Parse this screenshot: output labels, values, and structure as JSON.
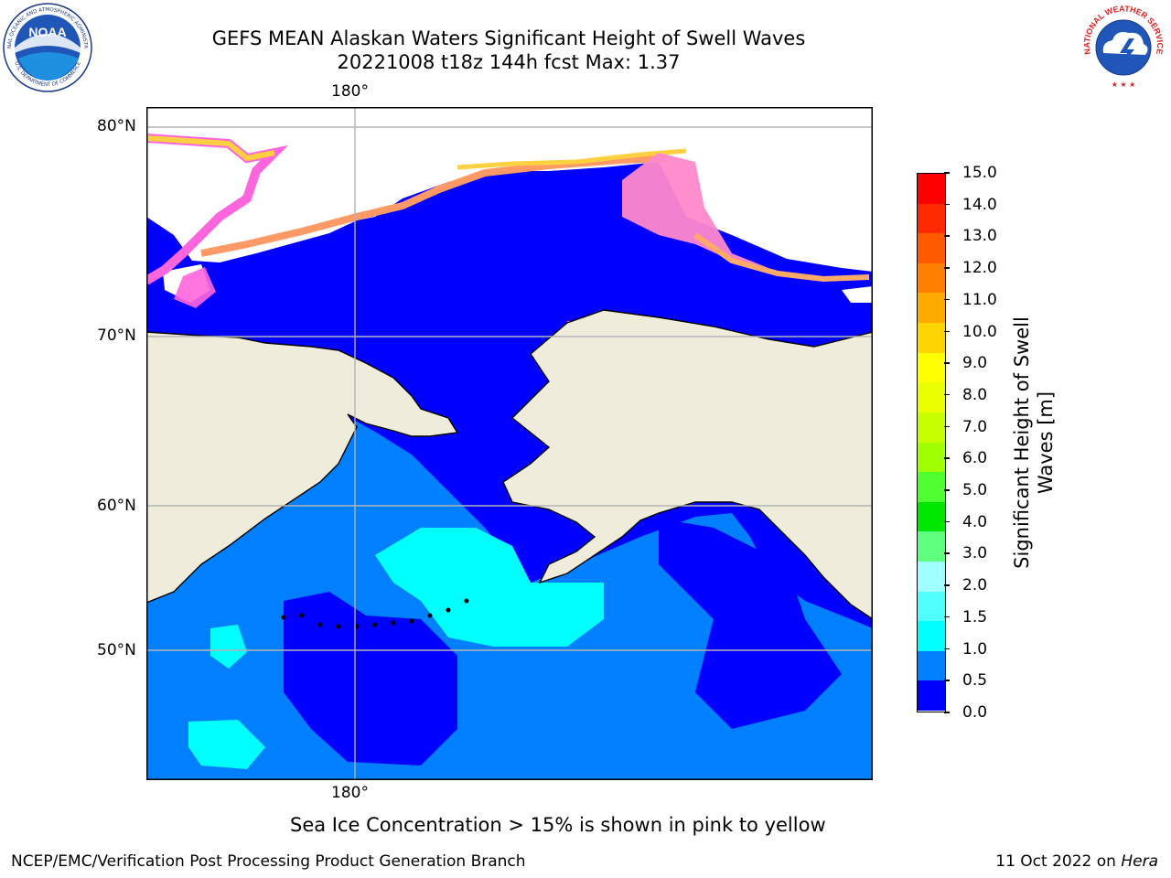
{
  "header": {
    "title_line1": "GEFS MEAN Alaskan Waters Significant Height of Swell Waves",
    "title_line2": "20221008 t18z 144h fcst   Max: 1.37"
  },
  "logos": {
    "left": {
      "name": "noaa-logo",
      "text": "NOAA",
      "ring_top": "NATIONAL OCEANIC AND ATMOSPHERIC ADMINISTRATION",
      "ring_bottom": "U.S. DEPARTMENT OF COMMERCE"
    },
    "right": {
      "name": "nws-logo",
      "ring_text": "NATIONAL WEATHER SERVICE"
    }
  },
  "map": {
    "lon_labels": {
      "top": "180°",
      "bottom": "180°"
    },
    "lat_labels": [
      "80°N",
      "70°N",
      "60°N",
      "50°N"
    ],
    "colors": {
      "ocean_low": "#0000ff",
      "ocean_mid": "#0080ff",
      "ocean_high": "#00ffff",
      "ocean_high2": "#80ffff",
      "land": "#efecdc",
      "ice_pink": "#ff66dd",
      "ice_orange": "#ff9966",
      "ice_yellow": "#ffdd33",
      "grid": "#b4b4b4"
    }
  },
  "colorbar": {
    "label": "Significant Height of Swell Waves [m]",
    "ticks": [
      "15.0",
      "14.0",
      "13.0",
      "12.0",
      "11.0",
      "10.0",
      "9.0",
      "8.0",
      "7.0",
      "6.0",
      "5.0",
      "4.0",
      "3.0",
      "2.0",
      "1.5",
      "1.0",
      "0.5",
      "0.0"
    ],
    "colors": [
      "#ff0000",
      "#ff2a00",
      "#ff5a00",
      "#ff8000",
      "#ffaa00",
      "#ffd400",
      "#ffff00",
      "#eaff00",
      "#c8ff00",
      "#a0ff00",
      "#50ff30",
      "#00e800",
      "#60ff80",
      "#a0ffff",
      "#50ffff",
      "#00ffff",
      "#0080ff",
      "#0000ff"
    ]
  },
  "note": "Sea Ice Concentration > 15% is shown in pink to yellow",
  "footer": {
    "left": "NCEP/EMC/Verification Post Processing Product Generation Branch",
    "right_date": "11 Oct 2022 on ",
    "right_host": "Hera"
  }
}
